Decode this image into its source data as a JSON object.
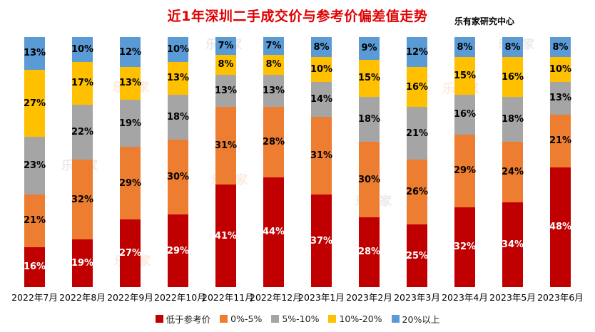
{
  "header": {
    "title": "近1年深圳二手成交价与参考价偏差值走势",
    "source": "乐有家研究中心"
  },
  "watermark": {
    "text": "乐有家"
  },
  "chart_data": {
    "type": "bar",
    "stacked": true,
    "unit": "%",
    "title": "近1年深圳二手成交价与参考价偏差值走势",
    "legend_position": "bottom",
    "grid": false,
    "ylim": [
      0,
      100
    ],
    "categories": [
      "2022年7月",
      "2022年8月",
      "2022年9月",
      "2022年10月",
      "2022年11月",
      "2022年12月",
      "2023年1月",
      "2023年2月",
      "2023年3月",
      "2023年4月",
      "2023年5月",
      "2023年6月"
    ],
    "series": [
      {
        "name": "低于参考价",
        "color": "#C00000",
        "label_color": "#FFFFFF",
        "values": [
          16,
          19,
          27,
          29,
          41,
          44,
          37,
          28,
          25,
          32,
          34,
          48
        ]
      },
      {
        "name": "0%-5%",
        "color": "#ED7D31",
        "label_color": "#000000",
        "values": [
          21,
          32,
          29,
          30,
          31,
          28,
          31,
          30,
          26,
          29,
          24,
          21
        ]
      },
      {
        "name": "5%-10%",
        "color": "#A5A5A5",
        "label_color": "#000000",
        "values": [
          23,
          22,
          19,
          18,
          13,
          13,
          14,
          18,
          21,
          16,
          18,
          13
        ]
      },
      {
        "name": "10%-20%",
        "color": "#FFC000",
        "label_color": "#000000",
        "values": [
          27,
          17,
          13,
          13,
          8,
          8,
          10,
          15,
          16,
          15,
          16,
          10
        ]
      },
      {
        "name": "20%以上",
        "color": "#5B9BD5",
        "label_color": "#000000",
        "values": [
          13,
          10,
          12,
          10,
          7,
          7,
          8,
          9,
          12,
          8,
          8,
          8
        ]
      }
    ],
    "value_suffix": "%"
  }
}
